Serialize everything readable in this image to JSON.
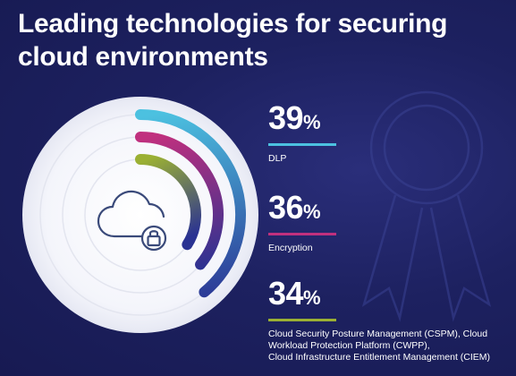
{
  "page": {
    "title_line1": "Leading technologies for securing",
    "title_line2": "cloud environments",
    "background_color": "#1d2160"
  },
  "chart_data": {
    "type": "radial-bar",
    "unit": "%",
    "max": 100,
    "series": [
      {
        "value": 39,
        "label": "DLP",
        "color": "#4cc1e0"
      },
      {
        "value": 36,
        "label": "Encryption",
        "color": "#c0307e"
      },
      {
        "value": 34,
        "label_lines": [
          "Cloud Security Posture Management (CSPM), Cloud",
          "Workload Protection Platform (CWPP),",
          "Cloud Infrastructure Entitlement Management (CIEM)"
        ],
        "color": "#9bb033"
      }
    ],
    "center_icon": "cloud-lock-icon",
    "arc_end_color": "#2a3292"
  }
}
